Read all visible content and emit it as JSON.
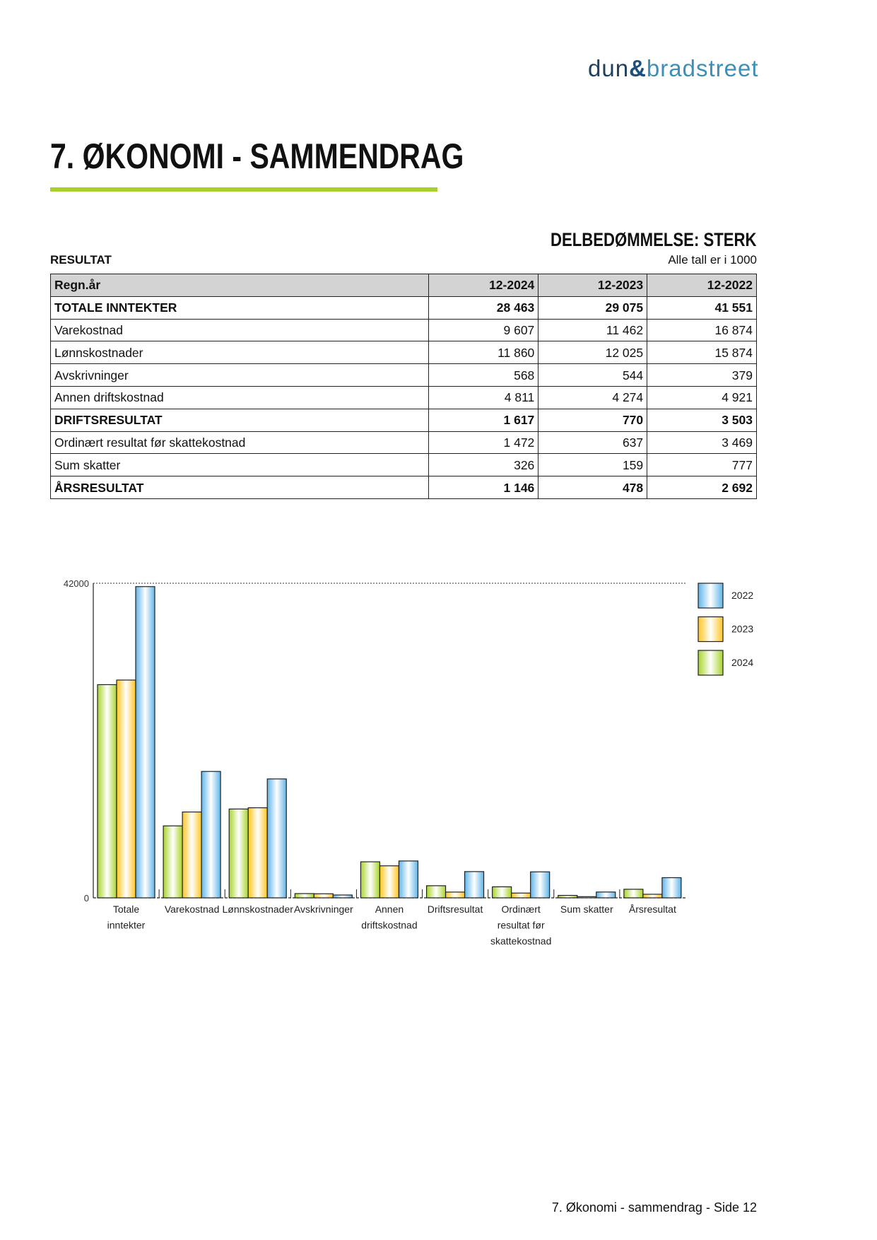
{
  "logo": {
    "text": "dun & bradstreet",
    "part1": "dun",
    "part2": "&",
    "part3": "bradstreet"
  },
  "title": "7. ØKONOMI - SAMMENDRAG",
  "rating": "DELBEDØMMELSE: STERK",
  "section": "RESULTAT",
  "unit_note": "Alle tall er i 1000",
  "table": {
    "headers": [
      "Regn.år",
      "12-2024",
      "12-2023",
      "12-2022"
    ],
    "rows": [
      {
        "label": "TOTALE INNTEKTER",
        "values": [
          "28 463",
          "29 075",
          "41 551"
        ],
        "bold": true
      },
      {
        "label": "Varekostnad",
        "values": [
          "9 607",
          "11 462",
          "16 874"
        ],
        "bold": false
      },
      {
        "label": "Lønnskostnader",
        "values": [
          "11 860",
          "12 025",
          "15 874"
        ],
        "bold": false
      },
      {
        "label": "Avskrivninger",
        "values": [
          "568",
          "544",
          "379"
        ],
        "bold": false
      },
      {
        "label": "Annen driftskostnad",
        "values": [
          "4 811",
          "4 274",
          "4 921"
        ],
        "bold": false
      },
      {
        "label": "DRIFTSRESULTAT",
        "values": [
          "1 617",
          "770",
          "3 503"
        ],
        "bold": true
      },
      {
        "label": "Ordinært resultat før skattekostnad",
        "values": [
          "1 472",
          "637",
          "3 469"
        ],
        "bold": false
      },
      {
        "label": "Sum skatter",
        "values": [
          "326",
          "159",
          "777"
        ],
        "bold": false
      },
      {
        "label": "ÅRSRESULTAT",
        "values": [
          "1 146",
          "478",
          "2 692"
        ],
        "bold": true
      }
    ]
  },
  "chart_data": {
    "type": "bar",
    "categories": [
      [
        "Totale",
        "inntekter"
      ],
      [
        "Varekostnad"
      ],
      [
        "Lønnskostnader"
      ],
      [
        "Avskrivninger"
      ],
      [
        "Annen",
        "driftskostnad"
      ],
      [
        "Driftsresultat"
      ],
      [
        "Ordinært",
        "resultat før",
        "skattekostnad"
      ],
      [
        "Sum skatter"
      ],
      [
        "Årsresultat"
      ]
    ],
    "series": [
      {
        "name": "2024",
        "color": "#a8d42a",
        "values": [
          28463,
          9607,
          11860,
          568,
          4811,
          1617,
          1472,
          326,
          1146
        ]
      },
      {
        "name": "2023",
        "color": "#ffc51f",
        "values": [
          29075,
          11462,
          12025,
          544,
          4274,
          770,
          637,
          159,
          478
        ]
      },
      {
        "name": "2022",
        "color": "#5fb4e8",
        "values": [
          41551,
          16874,
          15874,
          379,
          4921,
          3503,
          3469,
          777,
          2692
        ]
      }
    ],
    "legend_order": [
      "2022",
      "2023",
      "2024"
    ],
    "yticks": [
      "0",
      "42000"
    ],
    "ylim": [
      0,
      42000
    ],
    "legend": "right",
    "grid": "dotted line at max"
  },
  "footer": "7. Økonomi - sammendrag - Side 12"
}
